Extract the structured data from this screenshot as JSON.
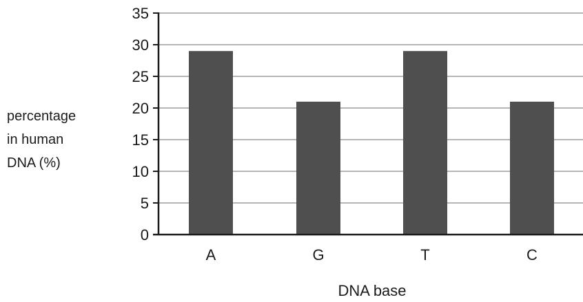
{
  "chart_data": {
    "type": "bar",
    "title": "",
    "categories": [
      "A",
      "G",
      "T",
      "C"
    ],
    "values": [
      29,
      21,
      29,
      21
    ],
    "xlabel": "DNA base",
    "ylabel_lines": [
      "percentage",
      "in human",
      "DNA (%)"
    ],
    "ylim": [
      0,
      35
    ],
    "yticks": [
      0,
      5,
      10,
      15,
      20,
      25,
      30,
      35
    ],
    "grid": true,
    "bar_color": "#4f4f4f",
    "grid_color": "#b5b5b5",
    "axis_color": "#1a1a1a"
  }
}
